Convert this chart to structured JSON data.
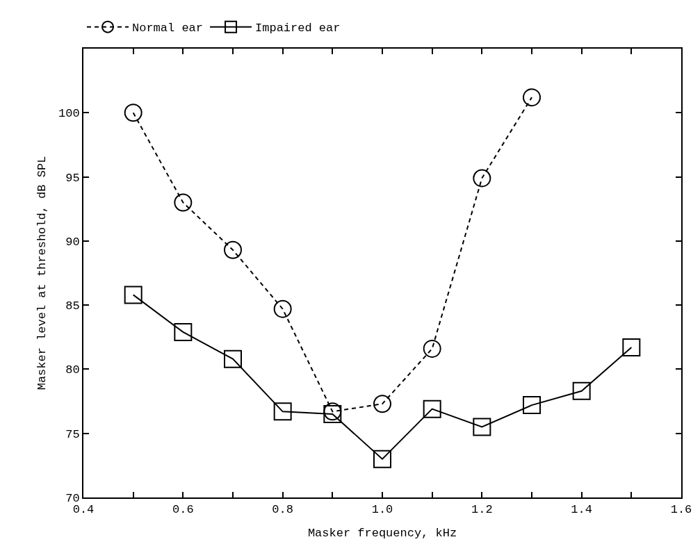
{
  "chart_data": {
    "type": "line",
    "xlabel": "Masker frequency, kHz",
    "ylabel": "Masker level at threshold, dB SPL",
    "x": [
      0.5,
      0.6,
      0.7,
      0.8,
      0.9,
      1.0,
      1.1,
      1.2,
      1.3,
      1.4,
      1.5
    ],
    "series": [
      {
        "name": "Normal ear",
        "color": "#000000",
        "marker": "circle",
        "line_style": "dashed",
        "values": [
          100.0,
          93.0,
          89.3,
          84.7,
          76.7,
          77.3,
          81.6,
          94.9,
          101.2,
          null,
          null
        ]
      },
      {
        "name": "Impaired ear",
        "color": "#000000",
        "marker": "square",
        "line_style": "solid",
        "values": [
          85.8,
          82.9,
          80.8,
          76.7,
          76.5,
          73.0,
          76.9,
          75.5,
          77.2,
          78.3,
          81.7
        ]
      }
    ],
    "xlim": [
      0.4,
      1.6
    ],
    "ylim": [
      70,
      105
    ],
    "xticks": [
      0.4,
      {
        "value": 0.5,
        "label": null
      },
      0.6,
      {
        "value": 0.7,
        "label": null
      },
      0.8,
      {
        "value": 0.9,
        "label": null
      },
      {
        "value": 1.0,
        "label": "1.0"
      },
      {
        "value": 1.1,
        "label": null
      },
      1.2,
      {
        "value": 1.3,
        "label": null
      },
      1.4,
      {
        "value": 1.5,
        "label": null
      },
      1.6
    ],
    "yticks": [
      70,
      75,
      80,
      85,
      90,
      95,
      100
    ],
    "legend": "top"
  }
}
